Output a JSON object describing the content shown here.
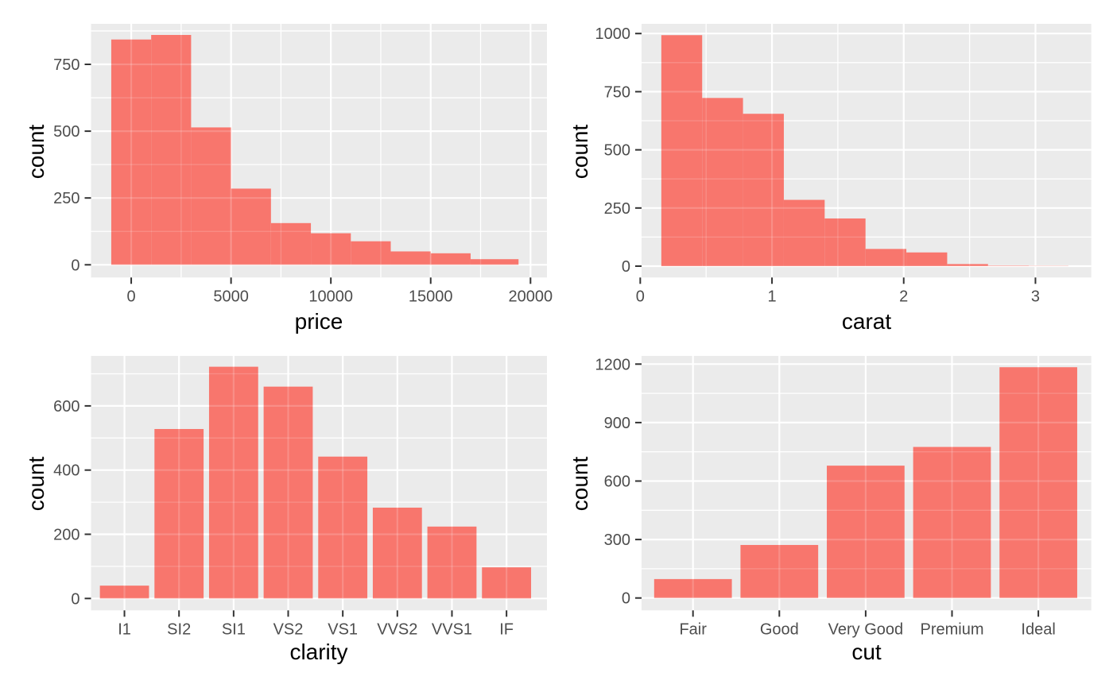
{
  "figure": {
    "background": "#FFFFFF",
    "panel_background": "#EBEBEB",
    "grid_major_color": "#FFFFFF",
    "grid_minor_color": "#FFFFFF",
    "bar_fill": "#F8766D",
    "tick_label_color": "#4D4D4D",
    "axis_title_color": "#000000",
    "tick_mark_color": "#333333"
  },
  "chart_data": [
    {
      "id": "price-histogram",
      "type": "histogram",
      "title": "",
      "xlabel": "price",
      "ylabel": "count",
      "bin_edges": [
        -1000,
        1000,
        3000,
        5000,
        7000,
        9000,
        11000,
        13000,
        15000,
        17000,
        19400
      ],
      "counts": [
        843,
        860,
        514,
        285,
        156,
        118,
        88,
        50,
        43,
        21
      ],
      "xlim": [
        -2013,
        20824
      ],
      "ylim": [
        -47.6,
        901.6
      ],
      "x_ticks": [
        0,
        5000,
        10000,
        15000,
        20000
      ],
      "x_tick_labels": [
        "0",
        "5000",
        "10000",
        "15000",
        "20000"
      ],
      "x_minor": [
        2500,
        7500,
        12500,
        17500
      ],
      "y_ticks": [
        0,
        250,
        500,
        750
      ],
      "y_tick_labels": [
        "0",
        "250",
        "500",
        "750"
      ],
      "y_minor": [
        125,
        375,
        625,
        875
      ],
      "grid": true,
      "legend": false
    },
    {
      "id": "carat-histogram",
      "type": "histogram",
      "title": "",
      "xlabel": "carat",
      "ylabel": "count",
      "bin_edges": [
        0.16,
        0.47,
        0.78,
        1.09,
        1.4,
        1.71,
        2.02,
        2.33,
        2.64,
        2.95,
        3.25
      ],
      "counts": [
        993,
        723,
        655,
        285,
        205,
        74,
        59,
        9,
        2,
        1
      ],
      "xlim": [
        0.01,
        3.424
      ],
      "ylim": [
        -48.8,
        1041.7
      ],
      "x_ticks": [
        0,
        1,
        2,
        3
      ],
      "x_tick_labels": [
        "0",
        "1",
        "2",
        "3"
      ],
      "x_minor": [
        0.5,
        1.5,
        2.5
      ],
      "y_ticks": [
        0,
        250,
        500,
        750,
        1000
      ],
      "y_tick_labels": [
        "0",
        "250",
        "500",
        "750",
        "1000"
      ],
      "y_minor": [
        125,
        375,
        625,
        875
      ],
      "grid": true,
      "legend": false
    },
    {
      "id": "clarity-bar-chart",
      "type": "bar",
      "title": "",
      "xlabel": "clarity",
      "ylabel": "count",
      "categories": [
        "I1",
        "SI2",
        "SI1",
        "VS2",
        "VS1",
        "VVS2",
        "VVS1",
        "IF"
      ],
      "values": [
        40,
        528,
        722,
        660,
        442,
        283,
        224,
        97
      ],
      "xlim": [
        0.3878,
        8.7408
      ],
      "ylim": [
        -37.1,
        755.7
      ],
      "y_ticks": [
        0,
        200,
        400,
        600
      ],
      "y_tick_labels": [
        "0",
        "200",
        "400",
        "600"
      ],
      "y_minor": [
        100,
        300,
        500,
        700
      ],
      "bar_rel_width": 0.9,
      "grid": true,
      "legend": false
    },
    {
      "id": "cut-bar-chart",
      "type": "bar",
      "title": "",
      "xlabel": "cut",
      "ylabel": "count",
      "categories": [
        "Fair",
        "Good",
        "Very Good",
        "Premium",
        "Ideal"
      ],
      "values": [
        97,
        272,
        679,
        775,
        1184
      ],
      "xlim": [
        0.4043,
        5.6133
      ],
      "ylim": [
        -63.6,
        1242
      ],
      "y_ticks": [
        0,
        300,
        600,
        900,
        1200
      ],
      "y_tick_labels": [
        "0",
        "300",
        "600",
        "900",
        "1200"
      ],
      "y_minor": [
        150,
        450,
        750,
        1050
      ],
      "bar_rel_width": 0.9,
      "grid": true,
      "legend": false
    }
  ]
}
